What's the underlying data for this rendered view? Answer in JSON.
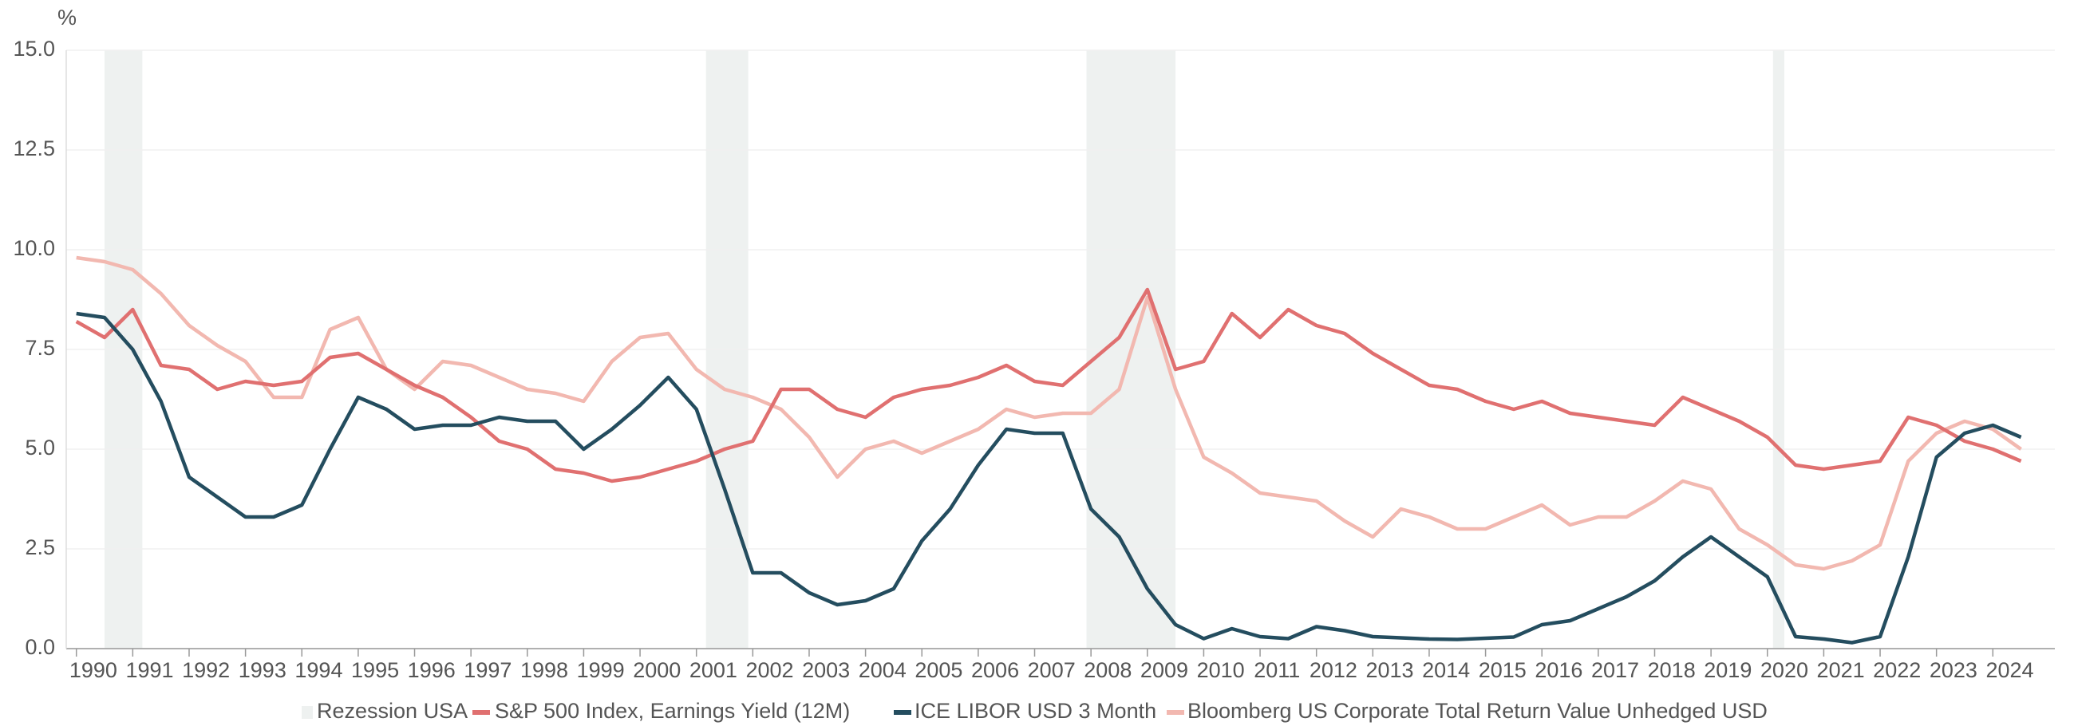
{
  "chart_data": {
    "type": "line",
    "y_unit": "%",
    "x": [
      1990.0,
      1990.5,
      1991.0,
      1991.5,
      1992.0,
      1992.5,
      1993.0,
      1993.5,
      1994.0,
      1994.5,
      1995.0,
      1995.5,
      1996.0,
      1996.5,
      1997.0,
      1997.5,
      1998.0,
      1998.5,
      1999.0,
      1999.5,
      2000.0,
      2000.5,
      2001.0,
      2001.5,
      2002.0,
      2002.5,
      2003.0,
      2003.5,
      2004.0,
      2004.5,
      2005.0,
      2005.5,
      2006.0,
      2006.5,
      2007.0,
      2007.5,
      2008.0,
      2008.5,
      2009.0,
      2009.5,
      2010.0,
      2010.5,
      2011.0,
      2011.5,
      2012.0,
      2012.5,
      2013.0,
      2013.5,
      2014.0,
      2014.5,
      2015.0,
      2015.5,
      2016.0,
      2016.5,
      2017.0,
      2017.5,
      2018.0,
      2018.5,
      2019.0,
      2019.5,
      2020.0,
      2020.5,
      2021.0,
      2021.5,
      2022.0,
      2022.5,
      2023.0,
      2023.5,
      2024.0,
      2024.5
    ],
    "series": [
      {
        "name": "S&P 500 Index, Earnings Yield (12M)",
        "color": "#e07070",
        "values": [
          8.2,
          7.8,
          8.5,
          7.1,
          7.0,
          6.5,
          6.7,
          6.6,
          6.7,
          7.3,
          7.4,
          7.0,
          6.6,
          6.3,
          5.8,
          5.2,
          5.0,
          4.5,
          4.4,
          4.2,
          4.3,
          4.5,
          4.7,
          5.0,
          5.2,
          6.5,
          6.5,
          6.0,
          5.8,
          6.3,
          6.5,
          6.6,
          6.8,
          7.1,
          6.7,
          6.6,
          7.2,
          7.8,
          9.0,
          7.0,
          7.2,
          8.4,
          7.8,
          8.5,
          8.1,
          7.9,
          7.4,
          7.0,
          6.6,
          6.5,
          6.2,
          6.0,
          6.2,
          5.9,
          5.8,
          5.7,
          5.6,
          6.3,
          6.0,
          5.7,
          5.3,
          4.6,
          4.5,
          4.6,
          4.7,
          5.8,
          5.6,
          5.2,
          5.0,
          4.7
        ]
      },
      {
        "name": "ICE LIBOR USD 3 Month",
        "color": "#244d5f",
        "values": [
          8.4,
          8.3,
          7.5,
          6.2,
          4.3,
          3.8,
          3.3,
          3.3,
          3.6,
          5.0,
          6.3,
          6.0,
          5.5,
          5.6,
          5.6,
          5.8,
          5.7,
          5.7,
          5.0,
          5.5,
          6.1,
          6.8,
          6.0,
          4.0,
          1.9,
          1.9,
          1.4,
          1.1,
          1.2,
          1.5,
          2.7,
          3.5,
          4.6,
          5.5,
          5.4,
          5.4,
          3.5,
          2.8,
          1.5,
          0.6,
          0.25,
          0.5,
          0.3,
          0.25,
          0.55,
          0.45,
          0.3,
          0.27,
          0.24,
          0.23,
          0.26,
          0.29,
          0.6,
          0.7,
          1.0,
          1.3,
          1.7,
          2.3,
          2.8,
          2.3,
          1.8,
          0.3,
          0.24,
          0.15,
          0.3,
          2.3,
          4.8,
          5.4,
          5.6,
          5.3
        ]
      },
      {
        "name": "Bloomberg US Corporate Total Return Value Unhedged USD",
        "color": "#f2b8b0",
        "values": [
          9.8,
          9.7,
          9.5,
          8.9,
          8.1,
          7.6,
          7.2,
          6.3,
          6.3,
          8.0,
          8.3,
          7.0,
          6.5,
          7.2,
          7.1,
          6.8,
          6.5,
          6.4,
          6.2,
          7.2,
          7.8,
          7.9,
          7.0,
          6.5,
          6.3,
          6.0,
          5.3,
          4.3,
          5.0,
          5.2,
          4.9,
          5.2,
          5.5,
          6.0,
          5.8,
          5.9,
          5.9,
          6.5,
          8.8,
          6.5,
          4.8,
          4.4,
          3.9,
          3.8,
          3.7,
          3.2,
          2.8,
          3.5,
          3.3,
          3.0,
          3.0,
          3.3,
          3.6,
          3.1,
          3.3,
          3.3,
          3.7,
          4.2,
          4.0,
          3.0,
          2.6,
          2.1,
          2.0,
          2.2,
          2.6,
          4.7,
          5.4,
          5.7,
          5.5,
          5.0
        ]
      }
    ],
    "recessions": {
      "name": "Rezession USA",
      "color": "#eef1f0",
      "periods": [
        [
          1990.5,
          1991.17
        ],
        [
          2001.17,
          2001.92
        ],
        [
          2007.92,
          2009.5
        ],
        [
          2020.1,
          2020.3
        ]
      ]
    },
    "xlim": [
      1989.82,
      2025.1
    ],
    "xticks": [
      1990,
      1991,
      1992,
      1993,
      1994,
      1995,
      1996,
      1997,
      1998,
      1999,
      2000,
      2001,
      2002,
      2003,
      2004,
      2005,
      2006,
      2007,
      2008,
      2009,
      2010,
      2011,
      2012,
      2013,
      2014,
      2015,
      2016,
      2017,
      2018,
      2019,
      2020,
      2021,
      2022,
      2023,
      2024
    ],
    "ylim": [
      0,
      15
    ],
    "yticks": [
      {
        "value": 0,
        "label": "0.0"
      },
      {
        "value": 2.5,
        "label": "2.5"
      },
      {
        "value": 5,
        "label": "5.0"
      },
      {
        "value": 7.5,
        "label": "7.5"
      },
      {
        "value": 10,
        "label": "10.0"
      },
      {
        "value": 12.5,
        "label": "12.5"
      },
      {
        "value": 15,
        "label": "15.0"
      }
    ],
    "grid": true
  }
}
